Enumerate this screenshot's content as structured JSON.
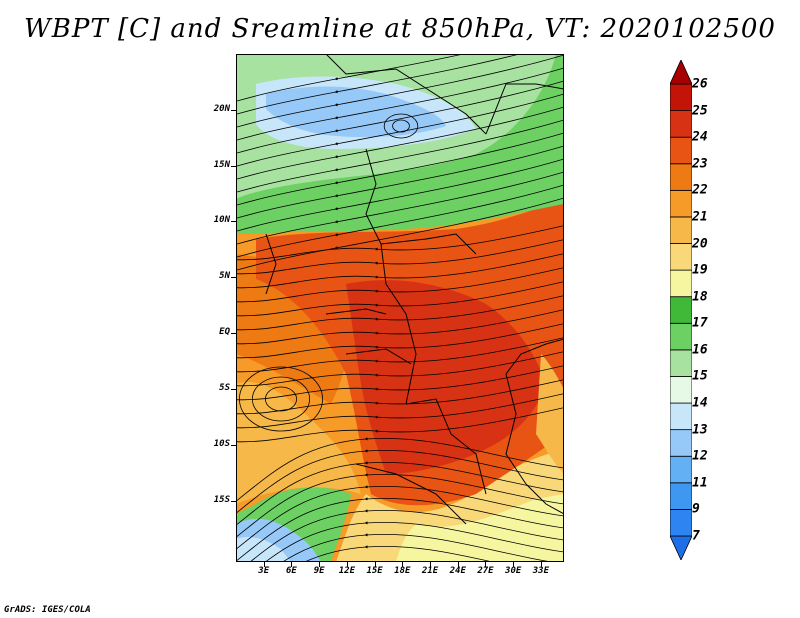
{
  "title": "WBPT [C] and Sreamline at 850hPa, VT: 2020102500",
  "credit": "GrADS: IGES/COLA",
  "map": {
    "lon_range": [
      0,
      35.5
    ],
    "lat_range": [
      -20.5,
      25
    ],
    "lat_ticks": [
      {
        "value": 20,
        "label": "20N"
      },
      {
        "value": 15,
        "label": "15N"
      },
      {
        "value": 10,
        "label": "10N"
      },
      {
        "value": 5,
        "label": "5N"
      },
      {
        "value": 0,
        "label": "EQ"
      },
      {
        "value": -5,
        "label": "5S"
      },
      {
        "value": -10,
        "label": "10S"
      },
      {
        "value": -15,
        "label": "15S"
      }
    ],
    "lon_ticks": [
      {
        "value": 3,
        "label": "3E"
      },
      {
        "value": 6,
        "label": "6E"
      },
      {
        "value": 9,
        "label": "9E"
      },
      {
        "value": 12,
        "label": "12E"
      },
      {
        "value": 15,
        "label": "15E"
      },
      {
        "value": 18,
        "label": "18E"
      },
      {
        "value": 21,
        "label": "21E"
      },
      {
        "value": 24,
        "label": "24E"
      },
      {
        "value": 27,
        "label": "27E"
      },
      {
        "value": 30,
        "label": "30E"
      },
      {
        "value": 33,
        "label": "33E"
      }
    ]
  },
  "colorbar": {
    "levels": [
      "7",
      "9",
      "11",
      "12",
      "13",
      "14",
      "15",
      "16",
      "17",
      "18",
      "19",
      "20",
      "21",
      "22",
      "23",
      "24",
      "25",
      "26"
    ],
    "colors": [
      "#1e6ee8",
      "#2e84f0",
      "#3e98f2",
      "#64b0f4",
      "#96c8f8",
      "#c8e6fa",
      "#e6f8e6",
      "#a8e2a0",
      "#6cd062",
      "#40b838",
      "#f6f6a0",
      "#f8d878",
      "#f6b848",
      "#f69a28",
      "#ee7a14",
      "#e85414",
      "#d83214",
      "#c41408",
      "#a80000"
    ]
  },
  "fields": {
    "colors": {
      "blue_light": "#96c8f8",
      "blue_pale": "#c8e6fa",
      "green_light": "#a8e2a0",
      "green": "#6cd062",
      "yellow": "#f6f6a0",
      "yellow_orange": "#f8d878",
      "orange_light": "#f6b848",
      "orange": "#f69a28",
      "orange_dark": "#ee7a14",
      "red_orange": "#e85414",
      "red": "#d83214"
    }
  }
}
